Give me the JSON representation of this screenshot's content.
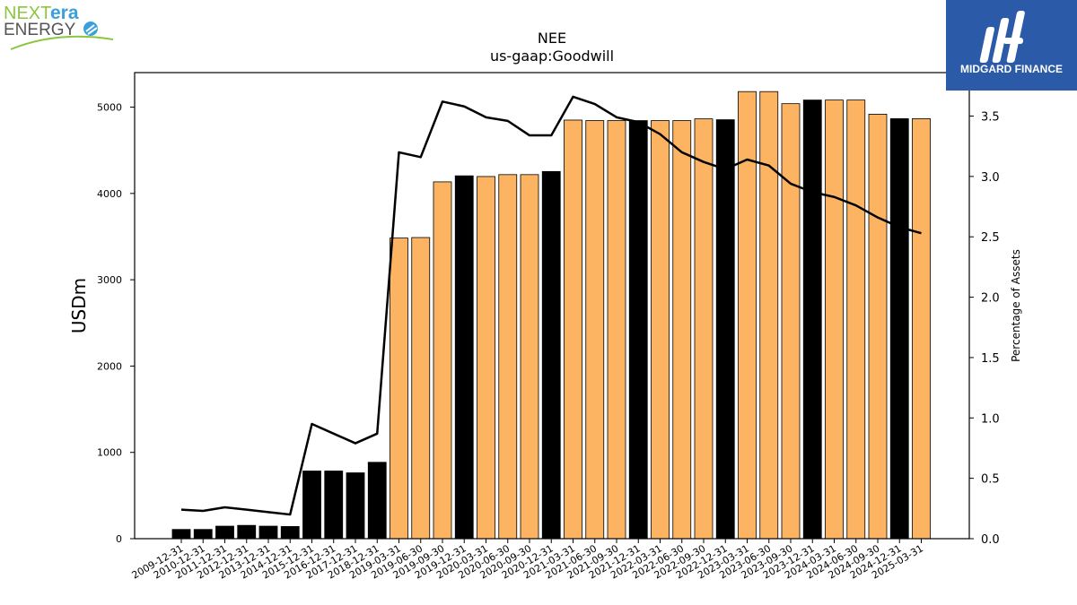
{
  "brand_left": {
    "line1a": "NEXT",
    "line1b": "era",
    "line2": "ENERGY"
  },
  "brand_right": {
    "name": "MIDGARD FINANCE"
  },
  "chart_data": {
    "type": "bar",
    "title": "NEE",
    "subtitle": "us-gaap:Goodwill",
    "ylabel": "USDm",
    "y2label": "Percentage of Assets",
    "ylim": [
      0,
      5400
    ],
    "y2lim": [
      0,
      3.86
    ],
    "yticks": [
      0,
      1000,
      2000,
      3000,
      4000,
      5000
    ],
    "y2ticks": [
      "0.0",
      "0.5",
      "1.0",
      "1.5",
      "2.0",
      "2.5",
      "3.0",
      "3.5"
    ],
    "categories": [
      "2009-12-31",
      "2010-12-31",
      "2011-12-31",
      "2012-12-31",
      "2013-12-31",
      "2014-12-31",
      "2015-12-31",
      "2016-12-31",
      "2017-12-31",
      "2018-12-31",
      "2019-03-31",
      "2019-06-30",
      "2019-09-30",
      "2019-12-31",
      "2020-03-31",
      "2020-06-30",
      "2020-09-30",
      "2020-12-31",
      "2021-03-31",
      "2021-06-30",
      "2021-09-30",
      "2021-12-31",
      "2022-03-31",
      "2022-06-30",
      "2022-09-30",
      "2022-12-31",
      "2023-03-31",
      "2023-06-30",
      "2023-09-30",
      "2023-12-31",
      "2024-03-31",
      "2024-06-30",
      "2024-09-30",
      "2024-12-31",
      "2025-03-31"
    ],
    "series": [
      {
        "type": "bar",
        "values": [
          107,
          107,
          145,
          154,
          145,
          141,
          784,
          784,
          763,
          885,
          3483,
          3489,
          4134,
          4204,
          4196,
          4218,
          4218,
          4254,
          4850,
          4844,
          4844,
          4844,
          4844,
          4844,
          4864,
          4854,
          5180,
          5180,
          5040,
          5082,
          5082,
          5082,
          4918,
          4866,
          4866
        ]
      },
      {
        "type": "line",
        "axis": "right",
        "values": [
          0.24,
          0.23,
          0.26,
          0.24,
          0.22,
          0.2,
          0.95,
          0.87,
          0.79,
          0.87,
          3.2,
          3.16,
          3.62,
          3.58,
          3.49,
          3.46,
          3.34,
          3.34,
          3.66,
          3.6,
          3.49,
          3.45,
          3.35,
          3.2,
          3.12,
          3.06,
          3.14,
          3.09,
          2.94,
          2.87,
          2.83,
          2.76,
          2.66,
          2.58,
          2.53
        ]
      }
    ],
    "bar_kinds": [
      "annual",
      "annual",
      "annual",
      "annual",
      "annual",
      "annual",
      "annual",
      "annual",
      "annual",
      "annual",
      "quarter",
      "quarter",
      "quarter",
      "annual",
      "quarter",
      "quarter",
      "quarter",
      "annual",
      "quarter",
      "quarter",
      "quarter",
      "annual",
      "quarter",
      "quarter",
      "quarter",
      "annual",
      "quarter",
      "quarter",
      "quarter",
      "annual",
      "quarter",
      "quarter",
      "quarter",
      "annual",
      "quarter"
    ],
    "colors": {
      "annual": "#000000",
      "quarter": "#fdb462",
      "line": "#000000",
      "brand_blue": "#2a5aa8",
      "brand_green": "#8cc63f",
      "brand_sky": "#3aa0dc"
    },
    "grid": false,
    "legend": "none"
  }
}
